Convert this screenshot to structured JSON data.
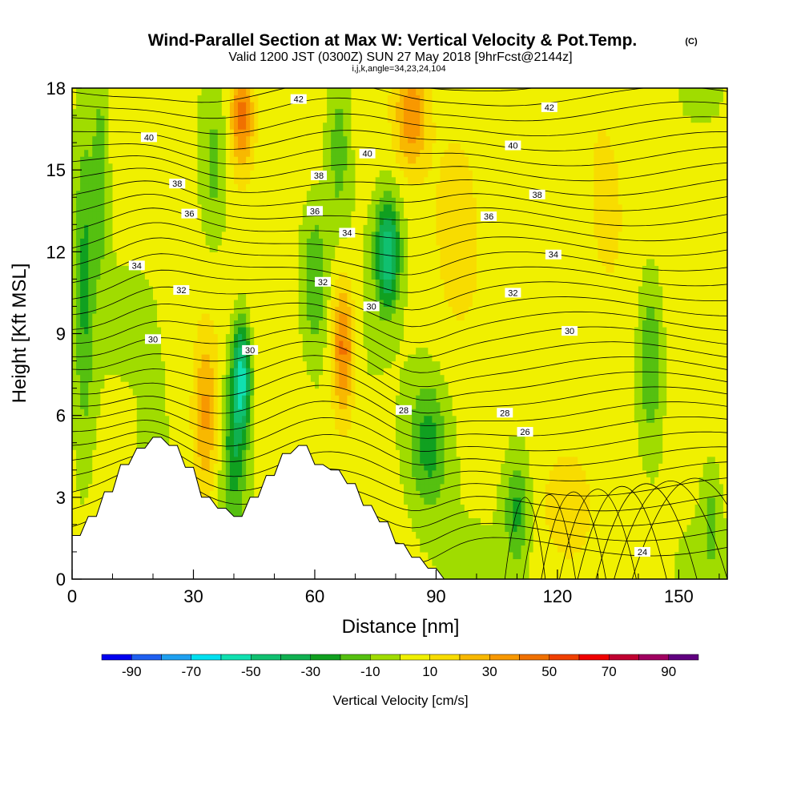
{
  "header": {
    "title": "Wind-Parallel Section at Max W: Vertical Velocity & Pot.Temp.",
    "title_mark": "(C)",
    "valid_line": "Valid 1200 JST (0300Z) SUN 27 May 2018 [9hrFcst@2144z]",
    "params": "i,j,k,angle=34,23,24,104"
  },
  "chart_data": {
    "type": "heatmap",
    "xlabel": "Distance [nm]",
    "ylabel": "Height [Kft MSL]",
    "xlim": [
      0,
      162
    ],
    "ylim": [
      0,
      18
    ],
    "x_ticks": [
      0,
      30,
      60,
      90,
      120,
      150
    ],
    "y_ticks": [
      0,
      3,
      6,
      9,
      12,
      15,
      18
    ],
    "colorbar": {
      "label": "Vertical Velocity [cm/s]",
      "tick_labels": [
        "-90",
        "-70",
        "-50",
        "-30",
        "-10",
        "10",
        "30",
        "50",
        "70",
        "90"
      ],
      "levels": [
        -100,
        -90,
        -80,
        -70,
        -60,
        -50,
        -40,
        -30,
        -20,
        -10,
        0,
        10,
        20,
        30,
        40,
        50,
        60,
        70,
        80,
        90,
        100
      ],
      "colors": [
        "#0000f0",
        "#1f5ff0",
        "#1ea0f0",
        "#00e0f0",
        "#10e0b0",
        "#10c070",
        "#10b050",
        "#10a020",
        "#55c010",
        "#a0dc00",
        "#f0f000",
        "#f8dc00",
        "#f8b800",
        "#f89800",
        "#f07000",
        "#f04000",
        "#f00000",
        "#c00030",
        "#a00060",
        "#600080"
      ]
    },
    "velocity_field": {
      "background_cm_s": 3,
      "features": [
        {
          "x": 3,
          "z": 11,
          "peak_cm_s": -25,
          "sx": 2.5,
          "sz": 6
        },
        {
          "x": 7,
          "z": 15,
          "peak_cm_s": -20,
          "sx": 2,
          "sz": 4
        },
        {
          "x": 20,
          "z": 4.5,
          "peak_cm_s": -12,
          "sx": 3,
          "sz": 2.5
        },
        {
          "x": 33,
          "z": 6,
          "peak_cm_s": 28,
          "sx": 3,
          "sz": 3
        },
        {
          "x": 42,
          "z": 7.5,
          "peak_cm_s": -55,
          "sx": 2.2,
          "sz": 2
        },
        {
          "x": 40,
          "z": 5,
          "peak_cm_s": -30,
          "sx": 3,
          "sz": 3
        },
        {
          "x": 42,
          "z": 17,
          "peak_cm_s": 45,
          "sx": 3,
          "sz": 2
        },
        {
          "x": 35,
          "z": 15,
          "peak_cm_s": -15,
          "sx": 3,
          "sz": 3
        },
        {
          "x": 67,
          "z": 8.5,
          "peak_cm_s": 42,
          "sx": 2.8,
          "sz": 2.5
        },
        {
          "x": 60,
          "z": 11,
          "peak_cm_s": -22,
          "sx": 3,
          "sz": 2.5
        },
        {
          "x": 78,
          "z": 12,
          "peak_cm_s": -52,
          "sx": 3,
          "sz": 2
        },
        {
          "x": 84,
          "z": 17,
          "peak_cm_s": 35,
          "sx": 4,
          "sz": 2
        },
        {
          "x": 66,
          "z": 16,
          "peak_cm_s": -20,
          "sx": 3,
          "sz": 3
        },
        {
          "x": 88,
          "z": 5,
          "peak_cm_s": -28,
          "sx": 5,
          "sz": 2.5
        },
        {
          "x": 110,
          "z": 2.5,
          "peak_cm_s": -25,
          "sx": 3,
          "sz": 2
        },
        {
          "x": 143,
          "z": 8,
          "peak_cm_s": -25,
          "sx": 3,
          "sz": 3
        },
        {
          "x": 158,
          "z": 2,
          "peak_cm_s": -15,
          "sx": 2,
          "sz": 2
        },
        {
          "x": 95,
          "z": 14,
          "peak_cm_s": 12,
          "sx": 6,
          "sz": 4
        },
        {
          "x": 132,
          "z": 12,
          "peak_cm_s": 10,
          "sx": 8,
          "sz": 5
        },
        {
          "x": 122,
          "z": 3,
          "peak_cm_s": 12,
          "sx": 6,
          "sz": 2
        }
      ]
    },
    "terrain_kft": {
      "x": [
        0,
        2,
        4,
        6,
        8,
        10,
        12,
        14,
        16,
        18,
        20,
        22,
        24,
        26,
        28,
        30,
        32,
        34,
        36,
        38,
        40,
        42,
        44,
        46,
        48,
        50,
        52,
        54,
        56,
        58,
        60,
        62,
        64,
        66,
        68,
        70,
        72,
        74,
        76,
        78,
        80,
        82,
        84,
        86,
        88,
        90,
        92
      ],
      "height": [
        1.6,
        1.6,
        2.3,
        2.3,
        3.2,
        3.2,
        4.2,
        4.2,
        4.8,
        4.8,
        5.2,
        5.2,
        4.9,
        4.9,
        4.1,
        4.1,
        3.0,
        3.0,
        2.6,
        2.6,
        2.3,
        2.3,
        3.0,
        3.0,
        3.8,
        3.8,
        4.6,
        4.6,
        4.9,
        4.9,
        4.2,
        4.2,
        4.0,
        4.0,
        3.5,
        3.5,
        2.7,
        2.7,
        2.1,
        2.1,
        1.3,
        1.3,
        0.8,
        0.8,
        0.4,
        0.4,
        0.0
      ]
    },
    "potential_temperature_labels": [
      {
        "x": 56,
        "z": 17.6,
        "text": "42"
      },
      {
        "x": 118,
        "z": 17.3,
        "text": "42"
      },
      {
        "x": 19,
        "z": 16.2,
        "text": "40"
      },
      {
        "x": 73,
        "z": 15.6,
        "text": "40"
      },
      {
        "x": 109,
        "z": 15.9,
        "text": "40"
      },
      {
        "x": 26,
        "z": 14.5,
        "text": "38"
      },
      {
        "x": 61,
        "z": 14.8,
        "text": "38"
      },
      {
        "x": 115,
        "z": 14.1,
        "text": "38"
      },
      {
        "x": 29,
        "z": 13.4,
        "text": "36"
      },
      {
        "x": 60,
        "z": 13.5,
        "text": "36"
      },
      {
        "x": 103,
        "z": 13.3,
        "text": "36"
      },
      {
        "x": 68,
        "z": 12.7,
        "text": "34"
      },
      {
        "x": 16,
        "z": 11.5,
        "text": "34"
      },
      {
        "x": 119,
        "z": 11.9,
        "text": "34"
      },
      {
        "x": 27,
        "z": 10.6,
        "text": "32"
      },
      {
        "x": 62,
        "z": 10.9,
        "text": "32"
      },
      {
        "x": 109,
        "z": 10.5,
        "text": "32"
      },
      {
        "x": 20,
        "z": 8.8,
        "text": "30"
      },
      {
        "x": 44,
        "z": 8.4,
        "text": "30"
      },
      {
        "x": 74,
        "z": 10.0,
        "text": "30"
      },
      {
        "x": 123,
        "z": 9.1,
        "text": "30"
      },
      {
        "x": 82,
        "z": 6.2,
        "text": "28"
      },
      {
        "x": 107,
        "z": 6.1,
        "text": "28"
      },
      {
        "x": 112,
        "z": 5.4,
        "text": "26"
      },
      {
        "x": 141,
        "z": 1.0,
        "text": "24"
      }
    ]
  }
}
